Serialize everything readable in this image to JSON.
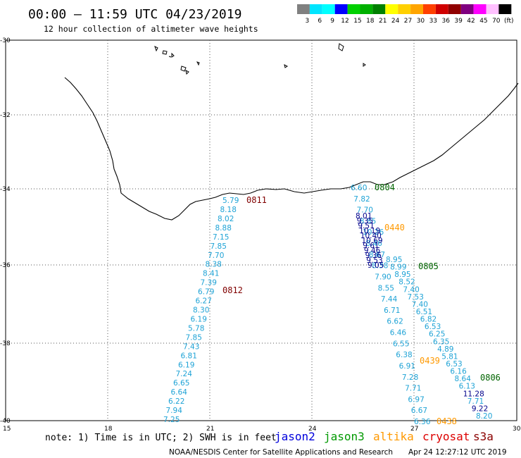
{
  "header": {
    "title": "00:00 – 11:59 UTC 04/23/2019",
    "subtitle": "12 hour collection of altimeter wave heights"
  },
  "color_scale": {
    "labels": [
      "3",
      "6",
      "9",
      "12",
      "15",
      "18",
      "21",
      "24",
      "27",
      "30",
      "33",
      "36",
      "39",
      "42",
      "45",
      "70",
      "(ft)"
    ],
    "colors": [
      "#808080",
      "#00e5ff",
      "#00ffff",
      "#0000ff",
      "#00d000",
      "#00b000",
      "#008000",
      "#ffff00",
      "#ffd000",
      "#ffa500",
      "#ff4000",
      "#d00000",
      "#900000",
      "#800080",
      "#ff00ff",
      "#ffc0ff",
      "#000000"
    ]
  },
  "axes": {
    "lat_labels": [
      "-30",
      "-32",
      "-34",
      "-36",
      "-38",
      "-40"
    ],
    "lon_labels": [
      "15",
      "18",
      "21",
      "24",
      "27",
      "30"
    ]
  },
  "tracks": {
    "track_west": {
      "color": "#1fa3d6",
      "values": [
        "5.79",
        "8.18",
        "8.02",
        "8.88",
        "7.15",
        "7.85",
        "7.70",
        "8.38",
        "8.41",
        "7.39",
        "6.79",
        "6.27",
        "8.30",
        "6.19",
        "5.78",
        "7.85",
        "7.43",
        "6.81",
        "6.19",
        "7.24",
        "6.65",
        "6.64",
        "6.22",
        "7.94",
        "7.25"
      ]
    },
    "track_a": {
      "color": "#1fa3d6",
      "values": [
        "6.60",
        "7.82",
        "7.70",
        "8.85",
        "10.26",
        "8.46",
        "8.67",
        "8.38",
        "7.90",
        "8.55",
        "7.44",
        "6.71",
        "6.62",
        "6.46",
        "6.55",
        "6.38",
        "6.91",
        "7.28",
        "7.71",
        "6.97",
        "6.67",
        "6.36"
      ]
    },
    "track_b": {
      "color": "#00008b",
      "values": [
        "8.01",
        "9.35",
        "9.51",
        "10.19",
        "10.40",
        "10.69",
        "9.61",
        "9.46",
        "9.36",
        "9.53",
        "9.05"
      ]
    },
    "track_c": {
      "color_cyan": "#1fa3d6",
      "color_navy": "#00008b",
      "values": [
        "8.95",
        "8.99",
        "8.95",
        "8.52",
        "7.40",
        "7.53",
        "7.40",
        "6.51",
        "6.82",
        "6.53",
        "6.25",
        "6.35",
        "4.89",
        "5.81",
        "6.53",
        "6.16",
        "8.64",
        "6.13",
        "11.28",
        "7.71",
        "9.22",
        "8.20"
      ]
    }
  },
  "time_labels": {
    "t0811": {
      "text": "0811",
      "color": "#800000"
    },
    "t0812": {
      "text": "0812",
      "color": "#800000"
    },
    "t0804": {
      "text": "0804",
      "color": "#006400"
    },
    "t0440": {
      "text": "0440",
      "color": "#ff9900"
    },
    "t0805": {
      "text": "0805",
      "color": "#006400"
    },
    "t0439": {
      "text": "0439",
      "color": "#ff9900"
    },
    "t0806": {
      "text": "0806",
      "color": "#006400"
    },
    "t0438": {
      "text": "0438",
      "color": "#ff9900"
    }
  },
  "footer": {
    "note": "note: 1) Time is in UTC; 2) SWH is in feet",
    "legend": [
      {
        "name": "jason2",
        "color": "#0000dd"
      },
      {
        "name": "jason3",
        "color": "#009900"
      },
      {
        "name": "altika",
        "color": "#ff9900"
      },
      {
        "name": "cryosat",
        "color": "#dd0000"
      },
      {
        "name": "s3a",
        "color": "#8b0000"
      }
    ],
    "credit": "NOAA/NESDIS Center for Satellite Applications and Research",
    "timestamp": "Apr 24 12:27:12 UTC 2019"
  }
}
